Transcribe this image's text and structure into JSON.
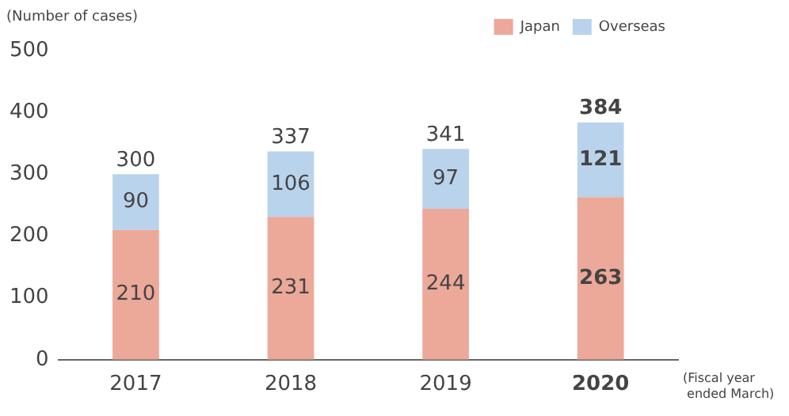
{
  "chart_data": {
    "type": "bar",
    "stacked": true,
    "ylabel": "(Number of cases)",
    "xlabel": "(Fiscal year ended March)",
    "categories": [
      "2017",
      "2018",
      "2019",
      "2020"
    ],
    "series": [
      {
        "name": "Japan",
        "color": "#eca898",
        "values": [
          210,
          231,
          244,
          263
        ]
      },
      {
        "name": "Overseas",
        "color": "#b9d3ec",
        "values": [
          90,
          106,
          97,
          121
        ]
      }
    ],
    "totals": [
      "300",
      "337",
      "341",
      "384"
    ],
    "data_labels": true,
    "ylim": [
      0,
      500
    ],
    "yticks": [
      0,
      100,
      200,
      300,
      400,
      500
    ],
    "grid": false,
    "legend": "top right"
  }
}
